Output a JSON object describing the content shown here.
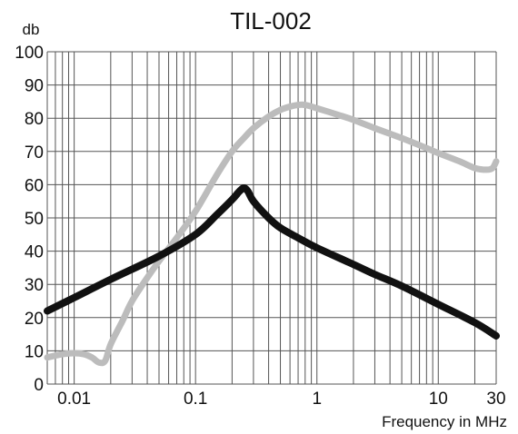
{
  "chart_data": {
    "type": "line",
    "title": "TIL-002",
    "xlabel": "Frequency in MHz",
    "ylabel": "db",
    "x_scale": "log",
    "xlim": [
      0.006,
      30
    ],
    "ylim": [
      0,
      100
    ],
    "yticks": [
      0,
      10,
      20,
      30,
      40,
      50,
      60,
      70,
      80,
      90,
      100
    ],
    "xticks": [
      {
        "value": 0.01,
        "label": "0.01"
      },
      {
        "value": 0.1,
        "label": "0.1"
      },
      {
        "value": 1,
        "label": "1"
      },
      {
        "value": 10,
        "label": "10"
      },
      {
        "value": 30,
        "label": "30"
      }
    ],
    "grid": true,
    "series": [
      {
        "color": "#bcbcbc",
        "points": [
          [
            0.006,
            8
          ],
          [
            0.008,
            9
          ],
          [
            0.01,
            9.3
          ],
          [
            0.012,
            9
          ],
          [
            0.014,
            8
          ],
          [
            0.016,
            6.5
          ],
          [
            0.018,
            7
          ],
          [
            0.02,
            12
          ],
          [
            0.025,
            19
          ],
          [
            0.03,
            25
          ],
          [
            0.04,
            32
          ],
          [
            0.05,
            37
          ],
          [
            0.07,
            44
          ],
          [
            0.1,
            52
          ],
          [
            0.15,
            63
          ],
          [
            0.2,
            70
          ],
          [
            0.25,
            74
          ],
          [
            0.3,
            77
          ],
          [
            0.4,
            80.5
          ],
          [
            0.5,
            82.5
          ],
          [
            0.6,
            83.5
          ],
          [
            0.7,
            84
          ],
          [
            0.8,
            84
          ],
          [
            1.0,
            83
          ],
          [
            1.5,
            81
          ],
          [
            2,
            79.5
          ],
          [
            3,
            77
          ],
          [
            5,
            74
          ],
          [
            8,
            71
          ],
          [
            10,
            69.5
          ],
          [
            15,
            67
          ],
          [
            20,
            65
          ],
          [
            25,
            64.5
          ],
          [
            28,
            65
          ],
          [
            30,
            67
          ]
        ]
      },
      {
        "color": "#111111",
        "points": [
          [
            0.006,
            22
          ],
          [
            0.01,
            26
          ],
          [
            0.02,
            31.5
          ],
          [
            0.05,
            38.5
          ],
          [
            0.1,
            45
          ],
          [
            0.15,
            51
          ],
          [
            0.2,
            55.5
          ],
          [
            0.23,
            58
          ],
          [
            0.25,
            59
          ],
          [
            0.27,
            58
          ],
          [
            0.3,
            55
          ],
          [
            0.4,
            50
          ],
          [
            0.5,
            47
          ],
          [
            0.7,
            44
          ],
          [
            1,
            41
          ],
          [
            2,
            36
          ],
          [
            3,
            33
          ],
          [
            5,
            29.5
          ],
          [
            10,
            24
          ],
          [
            20,
            18.5
          ],
          [
            30,
            14.5
          ]
        ]
      }
    ]
  }
}
